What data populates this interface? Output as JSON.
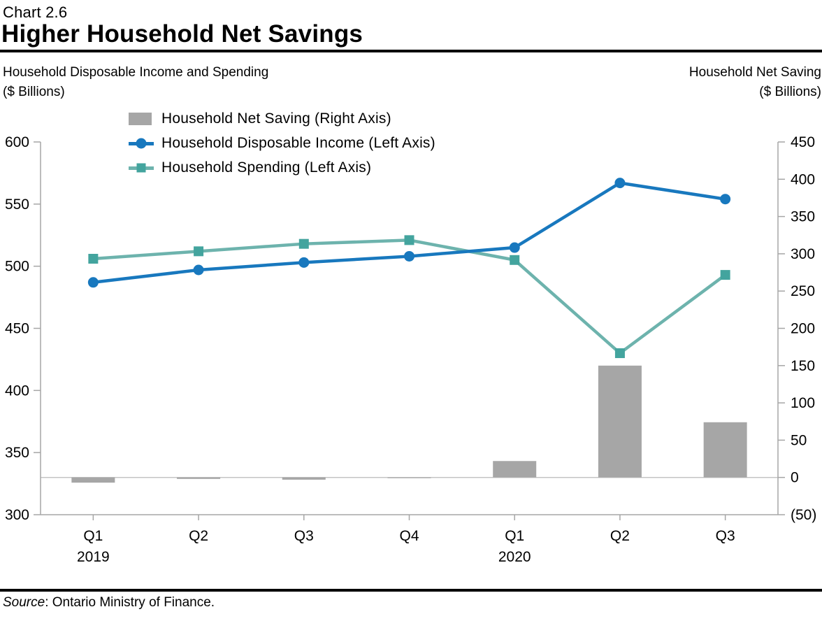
{
  "header": {
    "chart_label": "Chart 2.6",
    "title": "Higher Household Net Savings"
  },
  "subtitles": {
    "left_line1": "Household Disposable Income and Spending",
    "left_line2": "($ Billions)",
    "right_line1": "Household Net Saving",
    "right_line2": "($ Billions)"
  },
  "source": {
    "label": "Source",
    "text": ": Ontario Ministry of Finance."
  },
  "chart_data": {
    "type": "combo-bar-line",
    "categories": [
      {
        "quarter": "Q1",
        "year": "2019"
      },
      {
        "quarter": "Q2"
      },
      {
        "quarter": "Q3"
      },
      {
        "quarter": "Q4"
      },
      {
        "quarter": "Q1",
        "year": "2020"
      },
      {
        "quarter": "Q2"
      },
      {
        "quarter": "Q3"
      }
    ],
    "left_axis": {
      "title": "Household Disposable Income and Spending ($ Billions)",
      "min": 300,
      "max": 600,
      "step": 50
    },
    "right_axis": {
      "title": "Household Net Saving ($ Billions)",
      "min": -50,
      "max": 450,
      "step": 50,
      "negative_format": "parentheses"
    },
    "zero_line": true,
    "grid": false,
    "legend_position": "top-left-inside",
    "series": [
      {
        "name": "Household Net Saving (Right Axis)",
        "type": "bar",
        "axis": "right",
        "color": "#a6a6a6",
        "values": [
          -7,
          -2,
          -3,
          -1,
          22,
          150,
          74
        ]
      },
      {
        "name": "Household Disposable Income (Left Axis)",
        "type": "line",
        "axis": "left",
        "marker": "circle",
        "color": "#1878be",
        "line_color": "#1878be",
        "values": [
          487,
          497,
          503,
          508,
          515,
          567,
          554
        ]
      },
      {
        "name": "Household Spending (Left Axis)",
        "type": "line",
        "axis": "left",
        "marker": "square",
        "color": "#43a49e",
        "line_color": "#6db3ad",
        "values": [
          506,
          512,
          518,
          521,
          505,
          430,
          493
        ]
      }
    ]
  },
  "colors": {
    "axis": "#a6a6a6",
    "zero_line": "#c4c4c4",
    "rule": "#000000",
    "text": "#000000"
  }
}
